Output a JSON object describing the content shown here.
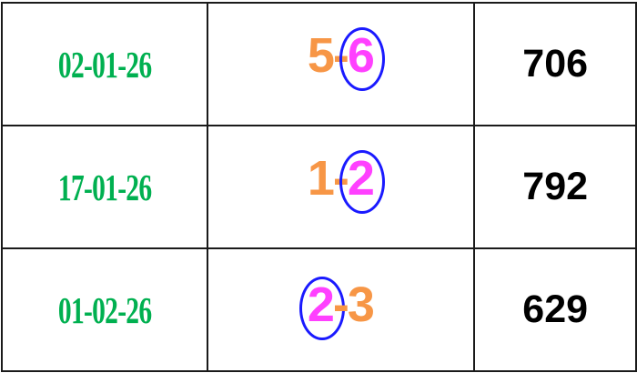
{
  "colors": {
    "date": "#00b050",
    "digit": "#f79646",
    "highlight": "#ff40ff",
    "circle": "#1a1aff"
  },
  "rows": [
    {
      "date": "02-01-26",
      "jodi": [
        "5",
        "-",
        "6"
      ],
      "circled": 2,
      "panel": "706"
    },
    {
      "date": "17-01-26",
      "jodi": [
        "1",
        "-",
        "2"
      ],
      "circled": 2,
      "panel": "792"
    },
    {
      "date": "01-02-26",
      "jodi": [
        "2",
        "-",
        "3"
      ],
      "circled": 0,
      "panel": "629"
    }
  ]
}
